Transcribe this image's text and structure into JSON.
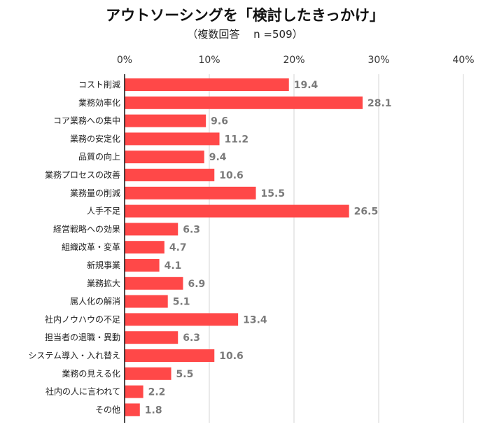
{
  "chart_data": {
    "type": "bar",
    "orientation": "horizontal",
    "title": "アウトソーシングを「検討したきっかけ」",
    "subtitle": "（複数回答　 n =509）",
    "categories": [
      "コスト削減",
      "業務効率化",
      "コア業務への集中",
      "業務の安定化",
      "品質の向上",
      "業務プロセスの改善",
      "業務量の削減",
      "人手不足",
      "経営戦略への効果",
      "組織改革・変革",
      "新規事業",
      "業務拡大",
      "属人化の解消",
      "社内ノウハウの不足",
      "担当者の退職・異動",
      "システム導入・入れ替え",
      "業務の見える化",
      "社内の人に言われて",
      "その他"
    ],
    "values": [
      19.4,
      28.1,
      9.6,
      11.2,
      9.4,
      10.6,
      15.5,
      26.5,
      6.3,
      4.7,
      4.1,
      6.9,
      5.1,
      13.4,
      6.3,
      10.6,
      5.5,
      2.2,
      1.8
    ],
    "value_labels": [
      "19.4",
      "28.1",
      "9.6",
      "11.2",
      "9.4",
      "10.6",
      "15.5",
      "26.5",
      "6.3",
      "4.7",
      "4.1",
      "6.9",
      "5.1",
      "13.4",
      "6.3",
      "10.6",
      "5.5",
      "2.2",
      "1.8"
    ],
    "xlim": [
      0,
      40
    ],
    "xticks": [
      0,
      10,
      20,
      30,
      40
    ],
    "xtick_labels": [
      "0%",
      "10%",
      "20%",
      "30%",
      "40%"
    ],
    "bar_color": "#ff4848",
    "grid": true,
    "legend": false
  }
}
